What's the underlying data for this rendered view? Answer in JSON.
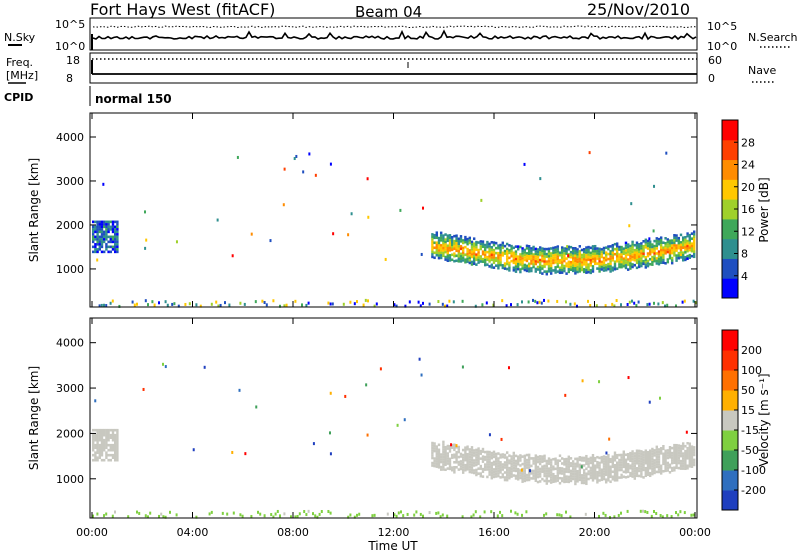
{
  "header": {
    "station": "Fort Hays West (fitACF)",
    "beam": "Beam 04",
    "date": "25/Nov/2010"
  },
  "noise_panel": {
    "left_label": "N.Sky",
    "left_ticks": [
      "10^5",
      "10^0"
    ],
    "right_label": "N.Search",
    "right_ticks": [
      "10^5",
      "10^0"
    ]
  },
  "freq_panel": {
    "left_label_1": "Freq.",
    "left_label_2": "[MHz]",
    "left_ticks": [
      "18",
      "8"
    ],
    "right_label": "Nave",
    "right_ticks": [
      "60",
      "0"
    ]
  },
  "cpid": {
    "label": "CPID",
    "value": "normal 150"
  },
  "power_panel": {
    "ylabel": "Slant Range [km]",
    "yticks": [
      "4000",
      "3000",
      "2000",
      "1000"
    ],
    "colorbar_label": "Power [dB]",
    "colorbar_ticks": [
      "28",
      "24",
      "20",
      "16",
      "12",
      "8",
      "4"
    ],
    "colors": [
      "#0000ff",
      "#1f4fc0",
      "#2f8f8f",
      "#3fa85a",
      "#9fd02a",
      "#ffc800",
      "#ff8c00",
      "#ff4000",
      "#ff0000"
    ]
  },
  "velocity_panel": {
    "ylabel": "Slant Range [km]",
    "yticks": [
      "4000",
      "3000",
      "2000",
      "1000"
    ],
    "colorbar_label": "Velocity [m s⁻¹]",
    "colorbar_ticks": [
      "200",
      "100",
      "50",
      "15",
      "-15",
      "-50",
      "-100",
      "-200"
    ],
    "colors": [
      "#1f3fbf",
      "#2f6fbf",
      "#3fa05a",
      "#7fd040",
      "#c8c8c0",
      "#ffb000",
      "#ff7000",
      "#ff3000",
      "#ff0000"
    ],
    "ground_scatter_color": "#c8c8c0"
  },
  "x_axis": {
    "label": "Time UT",
    "ticks": [
      "00:00",
      "04:00",
      "08:00",
      "12:00",
      "16:00",
      "20:00",
      "00:00"
    ]
  },
  "chart_data": [
    {
      "type": "heatmap",
      "title": "Power",
      "xlabel": "Time UT",
      "ylabel": "Slant Range [km]",
      "x_range_hours": [
        0,
        24
      ],
      "ylim_km": [
        180,
        4500
      ],
      "colorbar": "Power [dB]",
      "colorbar_range": [
        0,
        30
      ],
      "regions": [
        {
          "t_start": 0.0,
          "t_end": 1.0,
          "range_min": 1400,
          "range_max": 2100,
          "power_db": 6
        },
        {
          "t_start": 13.5,
          "t_end": 24.0,
          "range_min": 900,
          "range_max": 1800,
          "power_db": 18
        },
        {
          "t_start": 0.0,
          "t_end": 24.0,
          "range_min": 180,
          "range_max": 320,
          "power_db": 10
        }
      ]
    },
    {
      "type": "heatmap",
      "title": "Velocity",
      "xlabel": "Time UT",
      "ylabel": "Slant Range [km]",
      "x_range_hours": [
        0,
        24
      ],
      "ylim_km": [
        180,
        4500
      ],
      "colorbar": "Velocity [m s⁻¹]",
      "colorbar_range": [
        -200,
        200
      ],
      "regions": [
        {
          "t_start": 0.0,
          "t_end": 1.0,
          "range_min": 1400,
          "range_max": 2100,
          "velocity": 0
        },
        {
          "t_start": 13.5,
          "t_end": 24.0,
          "range_min": 900,
          "range_max": 1800,
          "velocity": 0
        },
        {
          "t_start": 0.0,
          "t_end": 24.0,
          "range_min": 180,
          "range_max": 320,
          "velocity": -40
        }
      ]
    }
  ]
}
